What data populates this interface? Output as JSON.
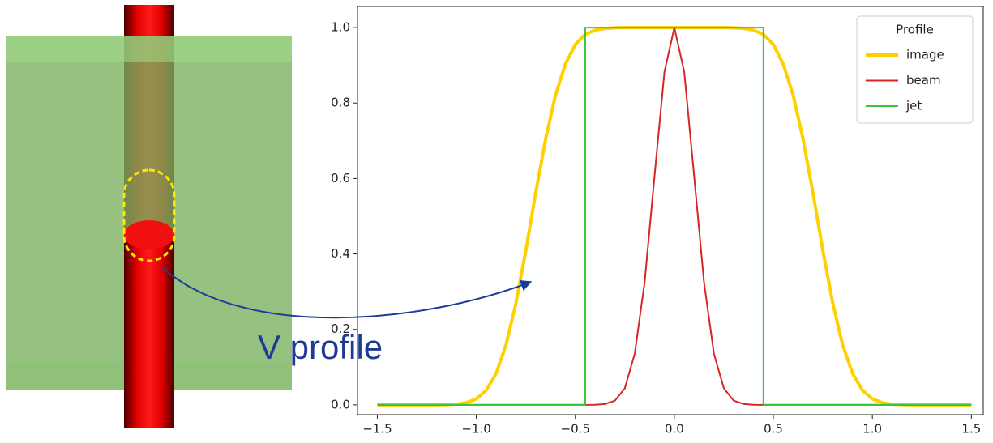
{
  "chart_data": {
    "type": "line",
    "annotation": "V profile",
    "legend_title": "Profile",
    "legend": "upper right",
    "x": [
      -1.5,
      -1.45,
      -1.4,
      -1.35,
      -1.3,
      -1.25,
      -1.2,
      -1.15,
      -1.1,
      -1.05,
      -1,
      -0.95,
      -0.9,
      -0.85,
      -0.8,
      -0.75,
      -0.7,
      -0.65,
      -0.6,
      -0.55,
      -0.5,
      -0.45,
      -0.4,
      -0.35,
      -0.3,
      -0.25,
      -0.2,
      -0.15,
      -0.1,
      -0.05,
      0,
      0.05,
      0.1,
      0.15,
      0.2,
      0.25,
      0.3,
      0.35,
      0.4,
      0.45,
      0.5,
      0.55,
      0.6,
      0.65,
      0.7,
      0.75,
      0.8,
      0.85,
      0.9,
      0.95,
      1,
      1.05,
      1.1,
      1.15,
      1.2,
      1.25,
      1.3,
      1.35,
      1.4,
      1.45,
      1.5
    ],
    "series": [
      {
        "name": "image",
        "color": "#ffd000",
        "width": 4,
        "values": [
          0,
          0,
          0,
          0,
          0,
          0,
          0.0001,
          0.0005,
          0.0018,
          0.0056,
          0.0158,
          0.0385,
          0.0832,
          0.1587,
          0.2693,
          0.4089,
          0.5618,
          0.7045,
          0.821,
          0.9034,
          0.9552,
          0.9818,
          0.9933,
          0.9977,
          0.9995,
          0.9998,
          1,
          1,
          1,
          1,
          1,
          1,
          1,
          1,
          1,
          0.9998,
          0.9995,
          0.9977,
          0.9933,
          0.9818,
          0.9552,
          0.9034,
          0.821,
          0.7045,
          0.5618,
          0.4089,
          0.2693,
          0.1587,
          0.0832,
          0.0385,
          0.0158,
          0.0056,
          0.0018,
          0.0005,
          0.0001,
          0,
          0,
          0,
          0,
          0,
          0
        ]
      },
      {
        "name": "beam",
        "color": "#d62728",
        "width": 2,
        "values": [
          0,
          0,
          0,
          0,
          0,
          0,
          0,
          0,
          0,
          0,
          0,
          0,
          0,
          0,
          0,
          0,
          0,
          0,
          0,
          0,
          0,
          0,
          0.0003,
          0.0022,
          0.0111,
          0.0439,
          0.1353,
          0.3247,
          0.6065,
          0.8825,
          1,
          0.8825,
          0.6065,
          0.3247,
          0.1353,
          0.0439,
          0.0111,
          0.0022,
          0.0003,
          0,
          0,
          0,
          0,
          0,
          0,
          0,
          0,
          0,
          0,
          0,
          0,
          0,
          0,
          0,
          0,
          0,
          0,
          0,
          0,
          0,
          0
        ]
      },
      {
        "name": "jet",
        "color": "#3cc43c",
        "width": 2,
        "x": [
          -1.5,
          -0.45,
          -0.45,
          0.45,
          0.45,
          1.5
        ],
        "values": [
          0,
          0,
          1,
          1,
          0,
          0
        ]
      }
    ],
    "xlim": [
      -1.6,
      1.56
    ],
    "ylim": [
      -0.026,
      1.056
    ],
    "xticks": [
      {
        "value": -1.5,
        "label": "−1.5"
      },
      {
        "value": -1,
        "label": "−1.0"
      },
      {
        "value": -0.5,
        "label": "−0.5"
      },
      {
        "value": 0,
        "label": "0.0"
      },
      0.5,
      {
        "value": 1,
        "label": "1.0"
      },
      1.5
    ],
    "yticks": [
      {
        "value": 0,
        "label": "0.0"
      },
      0.2,
      0.4,
      0.6,
      0.8,
      {
        "value": 1,
        "label": "1.0"
      }
    ]
  }
}
